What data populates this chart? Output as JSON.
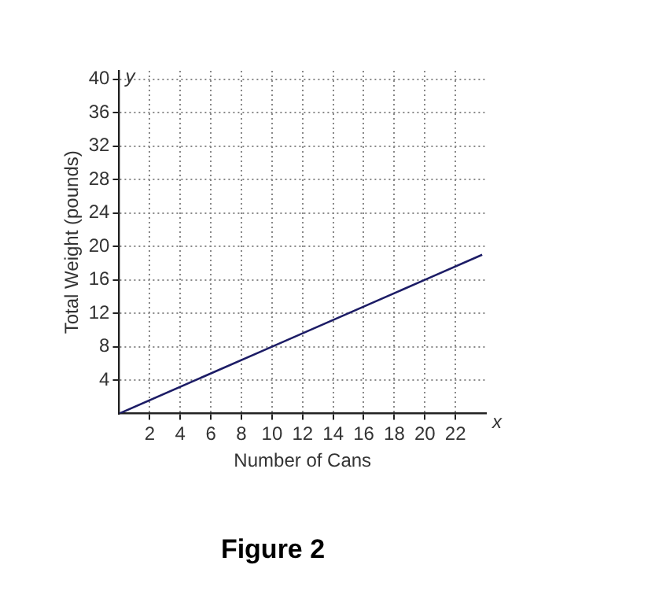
{
  "chart_data": {
    "type": "line",
    "title": "Figure 2",
    "xlabel": "Number of Cans",
    "ylabel": "Total Weight (pounds)",
    "x": [
      0,
      10,
      20,
      23.75
    ],
    "series": [
      {
        "color": "#1c1c66",
        "values": [
          0,
          8,
          16,
          19
        ]
      }
    ],
    "xlim": [
      0,
      24
    ],
    "ylim": [
      0,
      41
    ],
    "xticks": [
      2,
      4,
      6,
      8,
      10,
      12,
      14,
      16,
      18,
      20,
      22
    ],
    "yticks": [
      4,
      8,
      12,
      16,
      20,
      24,
      28,
      32,
      36,
      40
    ],
    "grid": true,
    "legend": false,
    "marker": "none",
    "line_style": "solid",
    "annotations": [
      "x",
      "y"
    ]
  }
}
